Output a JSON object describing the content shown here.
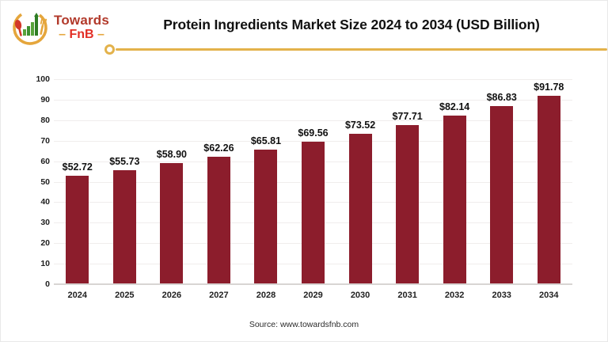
{
  "header": {
    "logo": {
      "line1": "Towards",
      "line2": "FnB",
      "dash": "–",
      "icon": "towardsfnb-logo-icon",
      "colors": {
        "towards": "#b23a2b",
        "fnb": "#e22f25",
        "gold": "#e3b24b"
      }
    },
    "title": "Protein Ingredients Market Size 2024 to 2034 (USD Billion)"
  },
  "chart_data": {
    "type": "bar",
    "title": "Protein Ingredients Market Size 2024 to 2034 (USD Billion)",
    "categories": [
      "2024",
      "2025",
      "2026",
      "2027",
      "2028",
      "2029",
      "2030",
      "2031",
      "2032",
      "2033",
      "2034"
    ],
    "values": [
      52.72,
      55.73,
      58.9,
      62.26,
      65.81,
      69.56,
      73.52,
      77.71,
      82.14,
      86.83,
      91.78
    ],
    "value_labels": [
      "$52.72",
      "$55.73",
      "$58.90",
      "$62.26",
      "$65.81",
      "$69.56",
      "$73.52",
      "$77.71",
      "$82.14",
      "$86.83",
      "$91.78"
    ],
    "yticks": [
      0,
      10,
      20,
      30,
      40,
      50,
      60,
      70,
      80,
      90,
      100
    ],
    "ylim": [
      0,
      100
    ],
    "xlabel": "",
    "ylabel": "",
    "grid": "horizontal-light",
    "legend": "none",
    "bar_color": "#8c1d2c",
    "unit": "USD Billion"
  },
  "footer": {
    "source": "Source: www.towardsfnb.com"
  }
}
